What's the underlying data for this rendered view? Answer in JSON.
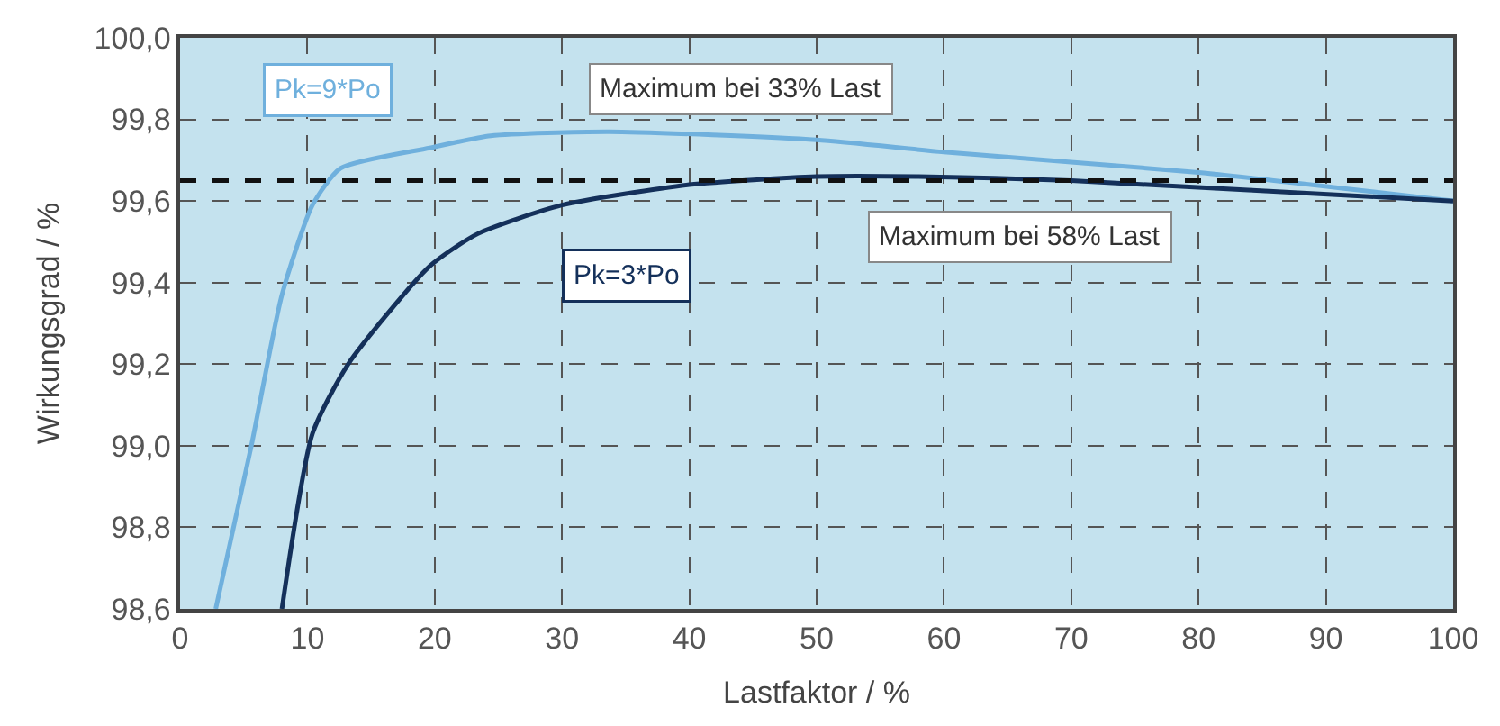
{
  "chart_data": {
    "type": "line",
    "xlabel": "Lastfaktor / %",
    "ylabel": "Wirkungsgrad / %",
    "series": [
      {
        "name": "Pk=9*Po",
        "color": "#6fb0dd",
        "x": [
          2.8,
          5.6,
          8.0,
          10.4,
          12.6,
          19.6,
          24.4,
          33.7,
          50,
          60,
          80,
          100
        ],
        "values": [
          98.6,
          99.0,
          99.37,
          99.59,
          99.68,
          99.73,
          99.76,
          99.77,
          99.75,
          99.72,
          99.67,
          99.6
        ]
      },
      {
        "name": "Pk=3*Po",
        "color": "#14305a",
        "x": [
          8.0,
          10.4,
          13.2,
          19.6,
          23.4,
          30,
          40,
          50,
          58,
          70,
          100
        ],
        "values": [
          98.6,
          99.03,
          99.2,
          99.44,
          99.52,
          99.59,
          99.64,
          99.66,
          99.66,
          99.65,
          99.6
        ]
      }
    ],
    "annotations": [
      "Maximum bei 33% Last",
      "Maximum bei 58% Last"
    ],
    "ref_lines": [
      {
        "axis": "y",
        "value": 99.65,
        "color": "#111111",
        "line_style": "dashed"
      }
    ],
    "xlim": [
      0,
      100
    ],
    "xticks": [
      0,
      10,
      20,
      30,
      40,
      50,
      60,
      70,
      80,
      90,
      100
    ],
    "ylim": [
      98.6,
      100.0
    ],
    "yticks": [
      {
        "value": 98.6,
        "label": "98,6"
      },
      {
        "value": 98.8,
        "label": "98,8"
      },
      {
        "value": 99.0,
        "label": "99,0"
      },
      {
        "value": 99.2,
        "label": "99,2"
      },
      {
        "value": 99.4,
        "label": "99,4"
      },
      {
        "value": 99.6,
        "label": "99,6"
      },
      {
        "value": 99.8,
        "label": "99,8"
      },
      {
        "value": 100.0,
        "label": "100,0"
      }
    ],
    "grid": true,
    "legend": false,
    "marker": "none",
    "line_style": "solid"
  }
}
